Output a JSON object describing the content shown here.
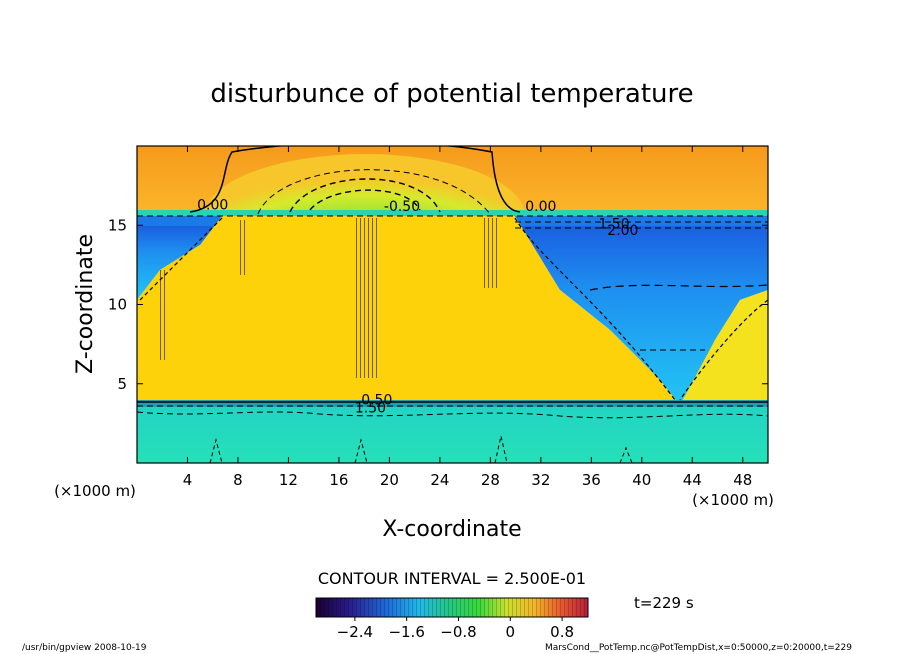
{
  "chart_data": {
    "type": "heatmap",
    "title": "disturbunce of potential temperature",
    "xlabel": "X-coordinate",
    "ylabel": "Z-coordinate",
    "x_unit": "(×1000 m)",
    "z_unit": "(×1000 m)",
    "xlim": [
      0,
      50
    ],
    "ylim": [
      0,
      20
    ],
    "x_ticks": [
      4,
      8,
      12,
      16,
      20,
      24,
      28,
      32,
      36,
      40,
      44,
      48
    ],
    "y_ticks": [
      5,
      10,
      15
    ],
    "contour_labels": [
      {
        "text": "0.00",
        "x": 6.0,
        "z": 16.0
      },
      {
        "text": "-0.50",
        "x": 21.0,
        "z": 15.9
      },
      {
        "text": "0.00",
        "x": 32.0,
        "z": 15.9
      },
      {
        "text": "1.50",
        "x": 37.8,
        "z": 14.8
      },
      {
        "text": "2.00",
        "x": 38.5,
        "z": 14.4
      },
      {
        "text": "0.50",
        "x": 19.0,
        "z": 3.7
      },
      {
        "text": "1.50",
        "x": 18.5,
        "z": 3.2
      }
    ],
    "contour_interval_text": "CONTOUR INTERVAL = 2.500E-01",
    "colorbar": {
      "range": [
        -3.0,
        1.2
      ],
      "tick_values": [
        -2.4,
        -1.6,
        -0.8,
        0,
        0.8
      ],
      "tick_labels": [
        "−2.4",
        "−1.6",
        "−0.8",
        "0",
        "0.8"
      ]
    },
    "time_text": "t=229 s",
    "grid": false
  },
  "footer": {
    "left": "/usr/bin/gpview   2008-10-19",
    "right": "MarsCond__PotTemp.nc@PotTempDist,x=0:50000,z=0:20000,t=229"
  }
}
